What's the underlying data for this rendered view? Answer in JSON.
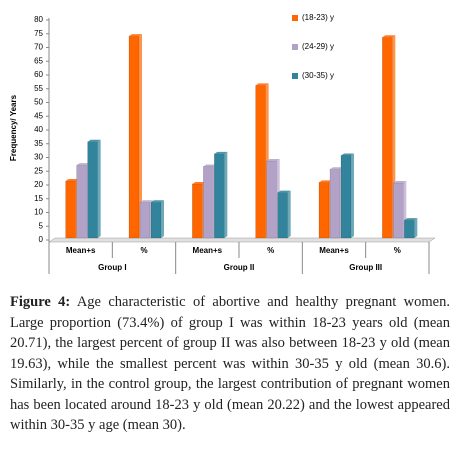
{
  "chart_data": {
    "type": "bar",
    "y_label": "Frequency/ Years",
    "categories": [
      "Mean+s",
      "%",
      "Mean+s",
      "%",
      "Mean+s",
      "%"
    ],
    "groups": [
      "Group I",
      "Group II",
      "Group III"
    ],
    "series": [
      {
        "name": "(18-23) y",
        "color": "#ff6600",
        "values": [
          20.71,
          73.4,
          19.63,
          55.5,
          20.22,
          73
        ]
      },
      {
        "name": "(24-29) y",
        "color": "#b3a2c7",
        "values": [
          26.5,
          13,
          26,
          28,
          25,
          20
        ]
      },
      {
        "name": "(30-35) y",
        "color": "#31849b",
        "values": [
          35,
          13,
          30.6,
          16.5,
          30,
          6.5
        ]
      }
    ],
    "ylim": [
      0,
      80
    ],
    "yticks": [
      0,
      5,
      10,
      15,
      20,
      25,
      30,
      35,
      40,
      45,
      50,
      55,
      60,
      65,
      70,
      75,
      80
    ],
    "legend": "top-right"
  },
  "caption": {
    "label": "Figure 4:",
    "text": "Age characteristic of abortive and healthy pregnant women. Large proportion (73.4%) of group I was within 18-23 years old (mean 20.71), the largest percent of group II was also between 18-23 y old (mean 19.63), while the smallest percent was within 30-35 y old (mean 30.6). Similarly, in the control group, the largest contribution of pregnant women has been located around 18-23 y old (mean 20.22) and the lowest appeared within 30-35 y age (mean 30)."
  }
}
